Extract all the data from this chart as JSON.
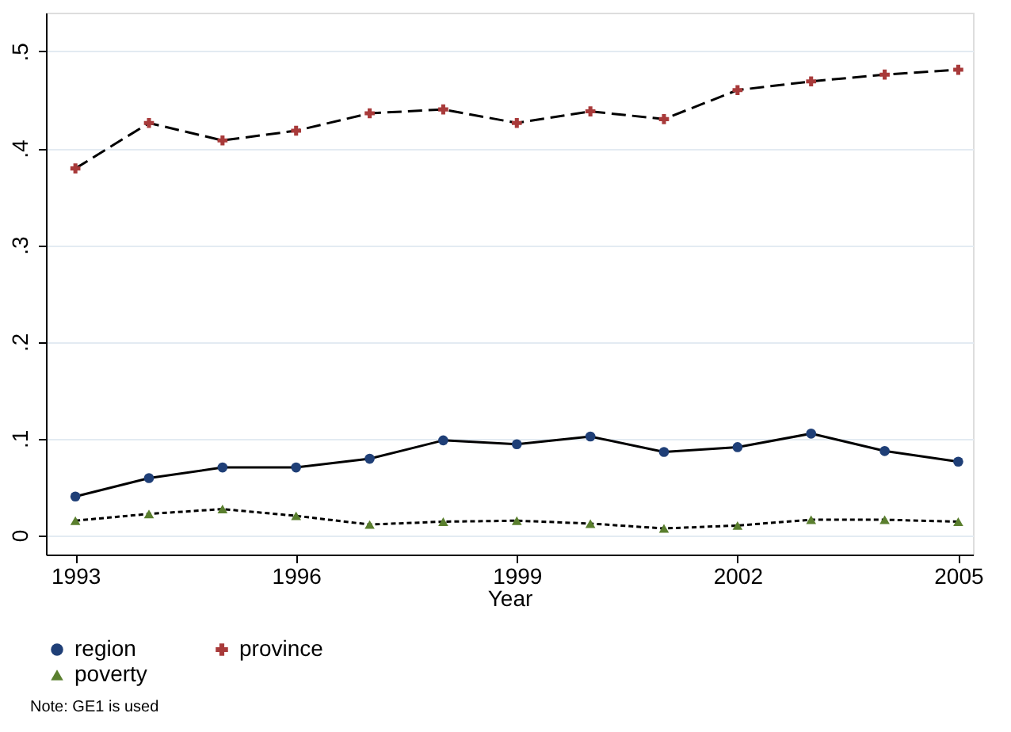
{
  "chart_data": {
    "type": "line",
    "xlabel": "Year",
    "x": [
      1993,
      1994,
      1995,
      1996,
      1997,
      1998,
      1999,
      2000,
      2001,
      2002,
      2003,
      2004,
      2005
    ],
    "series": [
      {
        "name": "region",
        "color": "#1f3f77",
        "marker": "circle",
        "line_style": "solid",
        "values": [
          0.04,
          0.059,
          0.07,
          0.07,
          0.079,
          0.098,
          0.094,
          0.102,
          0.086,
          0.091,
          0.105,
          0.087,
          0.076
        ]
      },
      {
        "name": "province",
        "color": "#a83a3a",
        "marker": "cross",
        "line_style": "dashed",
        "values": [
          0.379,
          0.426,
          0.408,
          0.418,
          0.436,
          0.44,
          0.426,
          0.438,
          0.43,
          0.46,
          0.469,
          0.476,
          0.481
        ]
      },
      {
        "name": "poverty",
        "color": "#5a7f2e",
        "marker": "triangle",
        "line_style": "dotted",
        "values": [
          0.015,
          0.022,
          0.027,
          0.02,
          0.011,
          0.014,
          0.015,
          0.012,
          0.007,
          0.01,
          0.016,
          0.016,
          0.014
        ]
      }
    ],
    "xlim": [
      1992.6,
      2005.2
    ],
    "xticks": [
      1993,
      1996,
      1999,
      2002,
      2005
    ],
    "ylim": [
      -0.02,
      0.54
    ],
    "yticks": [
      0,
      {
        "value": 0.1,
        "label": ".1"
      },
      {
        "value": 0.2,
        "label": ".2"
      },
      {
        "value": 0.3,
        "label": ".3"
      },
      {
        "value": 0.4,
        "label": ".4"
      },
      {
        "value": 0.5,
        "label": ".5"
      }
    ],
    "grid": "y",
    "legend": "bottom",
    "annotations": [
      "Note: GE1 is used"
    ]
  }
}
